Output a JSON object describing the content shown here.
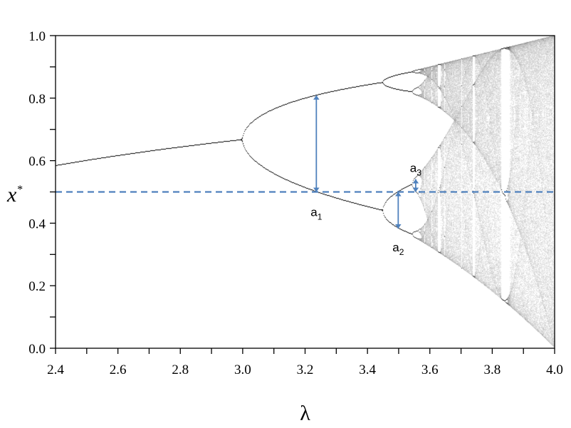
{
  "chart_data": {
    "type": "scatter",
    "xlabel": "λ",
    "ylabel_base": "x",
    "ylabel_sup": "*",
    "xlim": [
      2.4,
      4.0
    ],
    "ylim": [
      0.0,
      1.0
    ],
    "x_ticks": [
      "2.4",
      "2.6",
      "2.8",
      "3.0",
      "3.2",
      "3.4",
      "3.6",
      "3.8",
      "4.0"
    ],
    "y_ticks": [
      "0.0",
      "0.2",
      "0.4",
      "0.6",
      "0.8",
      "1.0"
    ],
    "grid": false,
    "reference_line": {
      "y": 0.5,
      "style": "dashed",
      "color": "#4f81bd"
    },
    "annotations": [
      {
        "base": "a",
        "sub": "1",
        "x": 3.2361,
        "y_from": 0.5,
        "y_to": 0.809
      },
      {
        "base": "a",
        "sub": "2",
        "x": 3.4986,
        "y_from": 0.5,
        "y_to": 0.383
      },
      {
        "base": "a",
        "sub": "3",
        "x": 3.5546,
        "y_from": 0.5,
        "y_to": 0.541
      }
    ],
    "colors": {
      "attractor": "#000000",
      "annotation": "#4f81bd"
    }
  }
}
